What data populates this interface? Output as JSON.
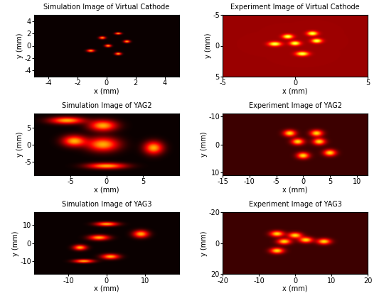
{
  "chart_data": [
    {
      "type": "image",
      "title": "Simulation Image of Virtual Cathode",
      "x_label": "x (mm)",
      "y_label": "y (mm)",
      "xlim": [
        -5,
        5
      ],
      "ylim": [
        -5,
        5
      ],
      "xticks": [
        -4,
        -2,
        0,
        2,
        4
      ],
      "yticks": [
        -4,
        -2,
        0,
        2,
        4
      ],
      "background": 0,
      "spots": [
        {
          "x": -1.1,
          "y": -0.8,
          "sx": 0.18,
          "sy": 0.15
        },
        {
          "x": -0.3,
          "y": 1.3,
          "sx": 0.15,
          "sy": 0.15
        },
        {
          "x": 0.1,
          "y": 0.0,
          "sx": 0.15,
          "sy": 0.15
        },
        {
          "x": 0.8,
          "y": 2.0,
          "sx": 0.15,
          "sy": 0.12
        },
        {
          "x": 1.4,
          "y": 0.7,
          "sx": 0.15,
          "sy": 0.15
        },
        {
          "x": 0.8,
          "y": -1.3,
          "sx": 0.15,
          "sy": 0.15
        }
      ]
    },
    {
      "type": "image",
      "title": "Experiment Image of Virtual Cathode",
      "x_label": "x (mm)",
      "y_label": "y (mm)",
      "xlim": [
        -5,
        5
      ],
      "ylim": [
        5,
        -5
      ],
      "xticks": [
        -5,
        0,
        5
      ],
      "yticks": [
        -5,
        0,
        5
      ],
      "background": 0.35,
      "spots": [
        {
          "x": -1.4,
          "y": -0.3,
          "sx": 0.3,
          "sy": 0.25
        },
        {
          "x": -0.5,
          "y": -1.5,
          "sx": 0.25,
          "sy": 0.25
        },
        {
          "x": 1.2,
          "y": -2.0,
          "sx": 0.25,
          "sy": 0.25
        },
        {
          "x": 0.0,
          "y": -0.4,
          "sx": 0.25,
          "sy": 0.25
        },
        {
          "x": 1.5,
          "y": -0.8,
          "sx": 0.25,
          "sy": 0.25
        },
        {
          "x": 0.5,
          "y": 1.3,
          "sx": 0.3,
          "sy": 0.25
        }
      ]
    },
    {
      "type": "image",
      "title": "Simulation Image of YAG2",
      "x_label": "x (mm)",
      "y_label": "y (mm)",
      "xlim": [
        -10,
        10
      ],
      "ylim": [
        -9,
        9
      ],
      "xticks": [
        -5,
        0,
        5
      ],
      "yticks": [
        -5,
        0,
        5
      ],
      "background": 0,
      "spots": [
        {
          "x": -5.5,
          "y": 7.0,
          "sx": 1.6,
          "sy": 0.7
        },
        {
          "x": -0.5,
          "y": 5.5,
          "sx": 1.3,
          "sy": 1.1
        },
        {
          "x": -4.5,
          "y": 1.0,
          "sx": 1.1,
          "sy": 1.1
        },
        {
          "x": -0.5,
          "y": 0.0,
          "sx": 1.5,
          "sy": 1.4
        },
        {
          "x": 6.5,
          "y": -1.0,
          "sx": 0.9,
          "sy": 1.3
        },
        {
          "x": 0.0,
          "y": -6.3,
          "sx": 1.8,
          "sy": 0.6
        }
      ]
    },
    {
      "type": "image",
      "title": "Experiment Image of YAG2",
      "x_label": "x (mm)",
      "y_label": "y (mm)",
      "xlim": [
        -15,
        12
      ],
      "ylim": [
        11,
        -11
      ],
      "xticks": [
        -15,
        -10,
        -5,
        0,
        5,
        10
      ],
      "yticks": [
        -10,
        0,
        10
      ],
      "background": 0.12,
      "spots": [
        {
          "x": -2.5,
          "y": -4.0,
          "sx": 0.8,
          "sy": 0.8
        },
        {
          "x": 2.5,
          "y": -4.0,
          "sx": 0.8,
          "sy": 0.8
        },
        {
          "x": -1.0,
          "y": -1.0,
          "sx": 0.8,
          "sy": 0.8
        },
        {
          "x": 3.0,
          "y": -1.0,
          "sx": 0.8,
          "sy": 0.8
        },
        {
          "x": 0.0,
          "y": 4.0,
          "sx": 0.8,
          "sy": 0.8
        },
        {
          "x": 5.0,
          "y": 3.0,
          "sx": 0.8,
          "sy": 0.8
        }
      ]
    },
    {
      "type": "image",
      "title": "Simulation Image of YAG3",
      "x_label": "x (mm)",
      "y_label": "y (mm)",
      "xlim": [
        -19,
        19
      ],
      "ylim": [
        -17,
        17
      ],
      "xticks": [
        -10,
        0,
        10
      ],
      "yticks": [
        -10,
        0,
        10
      ],
      "background": 0,
      "spots": [
        {
          "x": 0.0,
          "y": 10.5,
          "sx": 2.0,
          "sy": 0.8
        },
        {
          "x": -2.0,
          "y": 3.0,
          "sx": 1.8,
          "sy": 1.0
        },
        {
          "x": 9.0,
          "y": 5.0,
          "sx": 1.4,
          "sy": 1.4
        },
        {
          "x": -7.0,
          "y": -2.5,
          "sx": 1.2,
          "sy": 1.0
        },
        {
          "x": 1.0,
          "y": -7.5,
          "sx": 1.6,
          "sy": 1.0
        },
        {
          "x": -6.0,
          "y": -10.0,
          "sx": 1.8,
          "sy": 0.7
        }
      ]
    },
    {
      "type": "image",
      "title": "Experiment Image of YAG3",
      "x_label": "x (mm)",
      "y_label": "y (mm)",
      "xlim": [
        -20,
        20
      ],
      "ylim": [
        20,
        -20
      ],
      "xticks": [
        -20,
        -10,
        0,
        10,
        20
      ],
      "yticks": [
        -20,
        0,
        20
      ],
      "background": 0.12,
      "spots": [
        {
          "x": -5.0,
          "y": -6.0,
          "sx": 1.3,
          "sy": 1.3
        },
        {
          "x": 0.0,
          "y": -5.0,
          "sx": 1.3,
          "sy": 1.3
        },
        {
          "x": -3.0,
          "y": -1.0,
          "sx": 1.3,
          "sy": 1.3
        },
        {
          "x": 3.0,
          "y": -2.0,
          "sx": 1.3,
          "sy": 1.3
        },
        {
          "x": -5.0,
          "y": 5.0,
          "sx": 1.3,
          "sy": 1.3
        },
        {
          "x": 8.0,
          "y": -1.0,
          "sx": 1.3,
          "sy": 1.3
        }
      ]
    }
  ]
}
